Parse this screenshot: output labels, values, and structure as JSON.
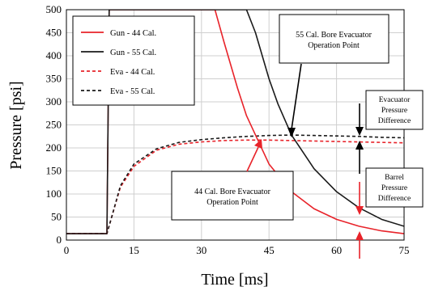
{
  "chart_data": {
    "type": "line",
    "xlabel": "Time [ms]",
    "ylabel": "Pressure [psi]",
    "xlim": [
      0,
      75
    ],
    "ylim": [
      0,
      500
    ],
    "xticks": [
      0,
      15,
      30,
      45,
      60,
      75
    ],
    "yticks": [
      0,
      50,
      100,
      150,
      200,
      250,
      300,
      350,
      400,
      450,
      500
    ],
    "grid": true,
    "legend_position": "top-left",
    "series": [
      {
        "name": "Gun - 44 Cal.",
        "color": "#e8232a",
        "dash": "solid",
        "x": [
          0,
          9,
          9.5,
          10,
          12,
          15,
          20,
          25,
          30,
          32,
          33,
          35,
          38,
          40,
          42,
          45,
          50,
          55,
          60,
          65,
          70,
          75
        ],
        "y": [
          14,
          14,
          500,
          500,
          500,
          500,
          500,
          500,
          500,
          500,
          500,
          430,
          330,
          270,
          228,
          165,
          105,
          68,
          45,
          30,
          20,
          14
        ]
      },
      {
        "name": "Gun - 55 Cal.",
        "color": "#1a1a1a",
        "dash": "solid",
        "x": [
          0,
          9,
          9.5,
          10,
          15,
          20,
          25,
          30,
          35,
          38,
          40,
          42,
          45,
          47,
          50,
          55,
          60,
          65,
          70,
          75
        ],
        "y": [
          14,
          14,
          500,
          500,
          500,
          500,
          500,
          500,
          500,
          500,
          500,
          450,
          350,
          295,
          228,
          155,
          105,
          70,
          45,
          30
        ]
      },
      {
        "name": "Eva - 44 Cal.",
        "color": "#e8232a",
        "dash": "dashed",
        "x": [
          0,
          9,
          10,
          12,
          15,
          20,
          25,
          30,
          35,
          40,
          45,
          50,
          55,
          60,
          65,
          70,
          75
        ],
        "y": [
          14,
          14,
          48,
          115,
          160,
          195,
          208,
          213,
          216,
          217,
          217,
          216,
          215,
          214,
          213,
          212,
          211
        ]
      },
      {
        "name": "Eva - 55 Cal.",
        "color": "#1a1a1a",
        "dash": "dashed",
        "x": [
          0,
          9,
          10,
          12,
          15,
          20,
          25,
          30,
          35,
          40,
          45,
          50,
          55,
          60,
          65,
          70,
          75
        ],
        "y": [
          14,
          14,
          48,
          118,
          165,
          198,
          212,
          218,
          222,
          225,
          227,
          228,
          227,
          226,
          225,
          223,
          222
        ]
      }
    ],
    "annotations": {
      "op55": "55 Cal. Bore Evacuator Operation Point",
      "op44": "44 Cal. Bore Evacuator Operation Point",
      "evap_diff": "Evacuator Pressure Difference",
      "barrel_diff": "Barrel Pressure Difference"
    }
  },
  "colors": {
    "red": "#e8232a",
    "black": "#1a1a1a",
    "grid": "#cfcfcf"
  }
}
